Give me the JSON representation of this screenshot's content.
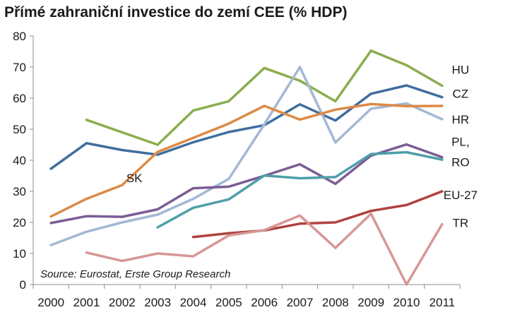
{
  "chart_data": {
    "type": "line",
    "title": "Přímé zahraniční investice do zemí CEE (% HDP)",
    "source": "Source: Eurostat, Erste Group Research",
    "x": [
      "2000",
      "2001",
      "2002",
      "2003",
      "2004",
      "2005",
      "2006",
      "2007",
      "2008",
      "2009",
      "2010",
      "2011"
    ],
    "ylim": [
      0,
      80
    ],
    "yticks": [
      "0",
      "10",
      "20",
      "30",
      "40",
      "50",
      "60",
      "70",
      "80"
    ],
    "grid": false,
    "series": [
      {
        "name": "HU",
        "label": "HU",
        "color": "#8bad4f",
        "values": [
          null,
          53,
          49,
          45,
          56,
          59,
          69.7,
          65.6,
          59,
          75.3,
          70.6,
          64
        ]
      },
      {
        "name": "CZ",
        "label": "CZ",
        "color": "#3f6e9e",
        "values": [
          37.3,
          45.5,
          43.3,
          41.8,
          45.8,
          49.1,
          51.3,
          58,
          52.8,
          61.4,
          64.1,
          60.3
        ]
      },
      {
        "name": "HR",
        "label": "HR",
        "color": "#a4b8d4",
        "values": [
          12.7,
          17,
          20,
          22.5,
          27.6,
          34,
          51.6,
          70,
          45.7,
          56.6,
          58.3,
          53.2
        ]
      },
      {
        "name": "SK",
        "label": "SK",
        "color": "#de8a45",
        "values": [
          21.9,
          27.6,
          32,
          42.7,
          47.2,
          51.8,
          57.5,
          53.1,
          56.3,
          58.1,
          57.4,
          57.5
        ]
      },
      {
        "name": "PL, RO",
        "label": "PL,",
        "label2": "RO",
        "color": "#7b5d96",
        "values": [
          19.8,
          22,
          21.8,
          24.2,
          31,
          31.5,
          35,
          38.7,
          32.4,
          41.5,
          45.1,
          41
        ]
      },
      {
        "name": "",
        "color": "#4e9fa8",
        "values": [
          null,
          null,
          null,
          18.4,
          24.7,
          27.4,
          35.1,
          34.2,
          34.6,
          42,
          42.6,
          40.2
        ]
      },
      {
        "name": "EU-27",
        "label": "EU-27",
        "color": "#b0413f",
        "values": [
          null,
          null,
          null,
          null,
          15.3,
          16.5,
          17.4,
          19.6,
          20,
          23.7,
          25.6,
          30
        ]
      },
      {
        "name": "TR",
        "label": "TR",
        "color": "#d69796",
        "values": [
          null,
          10.3,
          7.6,
          10,
          9.1,
          15.8,
          17.5,
          22.2,
          11.8,
          22.8,
          0,
          19.4
        ]
      }
    ]
  }
}
